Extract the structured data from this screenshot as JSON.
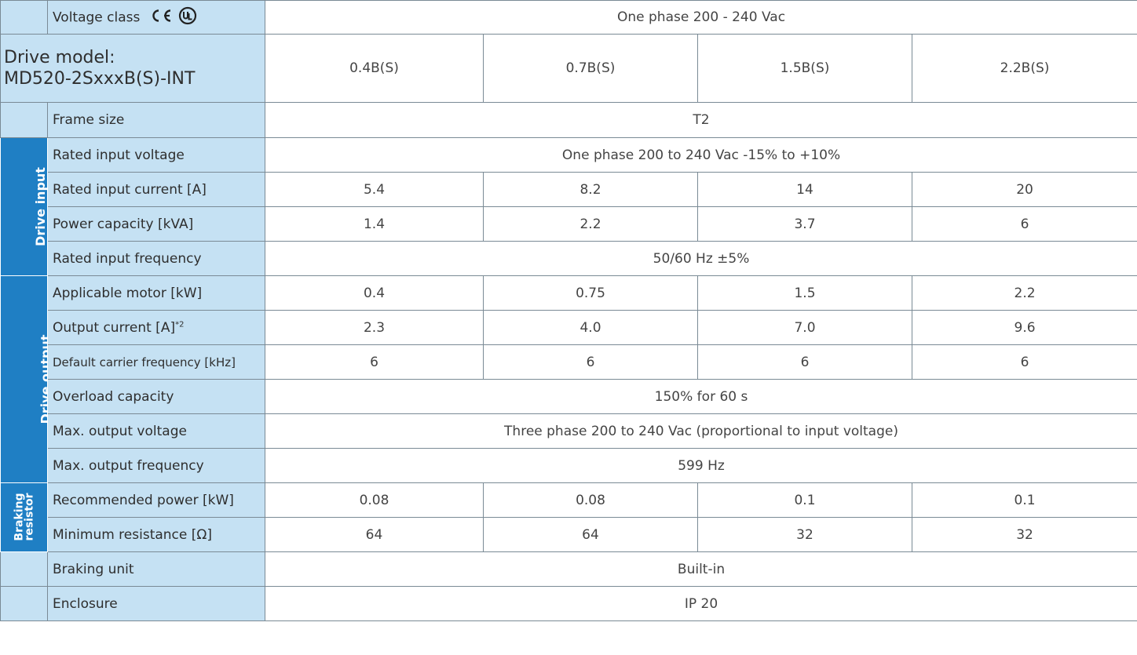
{
  "table": {
    "voltage_class_label": "Voltage class",
    "voltage_class_value": "One phase 200 - 240 Vac",
    "drive_model_label_line1": "Drive model:",
    "drive_model_label_line2": "MD520-2SxxxB(S)-INT",
    "models": [
      "0.4B(S)",
      "0.7B(S)",
      "1.5B(S)",
      "2.2B(S)"
    ],
    "frame_size_label": "Frame size",
    "frame_size_value": "T2",
    "drive_input": {
      "category": "Drive input",
      "rated_input_voltage_label": "Rated input voltage",
      "rated_input_voltage_value": "One phase 200 to 240 Vac -15% to +10%",
      "rated_input_current_label": "Rated input current [A]",
      "rated_input_current_values": [
        "5.4",
        "8.2",
        "14",
        "20"
      ],
      "power_capacity_label": "Power capacity [kVA]",
      "power_capacity_values": [
        "1.4",
        "2.2",
        "3.7",
        "6"
      ],
      "rated_input_frequency_label": "Rated input frequency",
      "rated_input_frequency_value": "50/60 Hz ±5%"
    },
    "drive_output": {
      "category": "Drive output",
      "applicable_motor_label": "Applicable motor [kW]",
      "applicable_motor_values": [
        "0.4",
        "0.75",
        "1.5",
        "2.2"
      ],
      "output_current_label": "Output current [A]",
      "output_current_sup": "*2",
      "output_current_values": [
        "2.3",
        "4.0",
        "7.0",
        "9.6"
      ],
      "carrier_frequency_label": "Default carrier frequency [kHz]",
      "carrier_frequency_values": [
        "6",
        "6",
        "6",
        "6"
      ],
      "overload_capacity_label": "Overload capacity",
      "overload_capacity_value": "150% for 60 s",
      "max_output_voltage_label": "Max. output voltage",
      "max_output_voltage_value": "Three phase 200 to 240 Vac (proportional to input voltage)",
      "max_output_frequency_label": "Max. output frequency",
      "max_output_frequency_value": "599 Hz"
    },
    "braking_resistor": {
      "category_line1": "Braking",
      "category_line2": "resistor",
      "recommended_power_label": "Recommended power [kW]",
      "recommended_power_values": [
        "0.08",
        "0.08",
        "0.1",
        "0.1"
      ],
      "minimum_resistance_label": "Minimum resistance [Ω]",
      "minimum_resistance_values": [
        "64",
        "64",
        "32",
        "32"
      ]
    },
    "braking_unit_label": "Braking unit",
    "braking_unit_value": "Built-in",
    "enclosure_label": "Enclosure",
    "enclosure_value": "IP 20",
    "colors": {
      "label_bg": "#c5e1f3",
      "category_bg": "#1f7fc4",
      "border": "#7a8a95"
    },
    "icons": [
      "ce-mark-icon",
      "ul-mark-icon"
    ]
  }
}
